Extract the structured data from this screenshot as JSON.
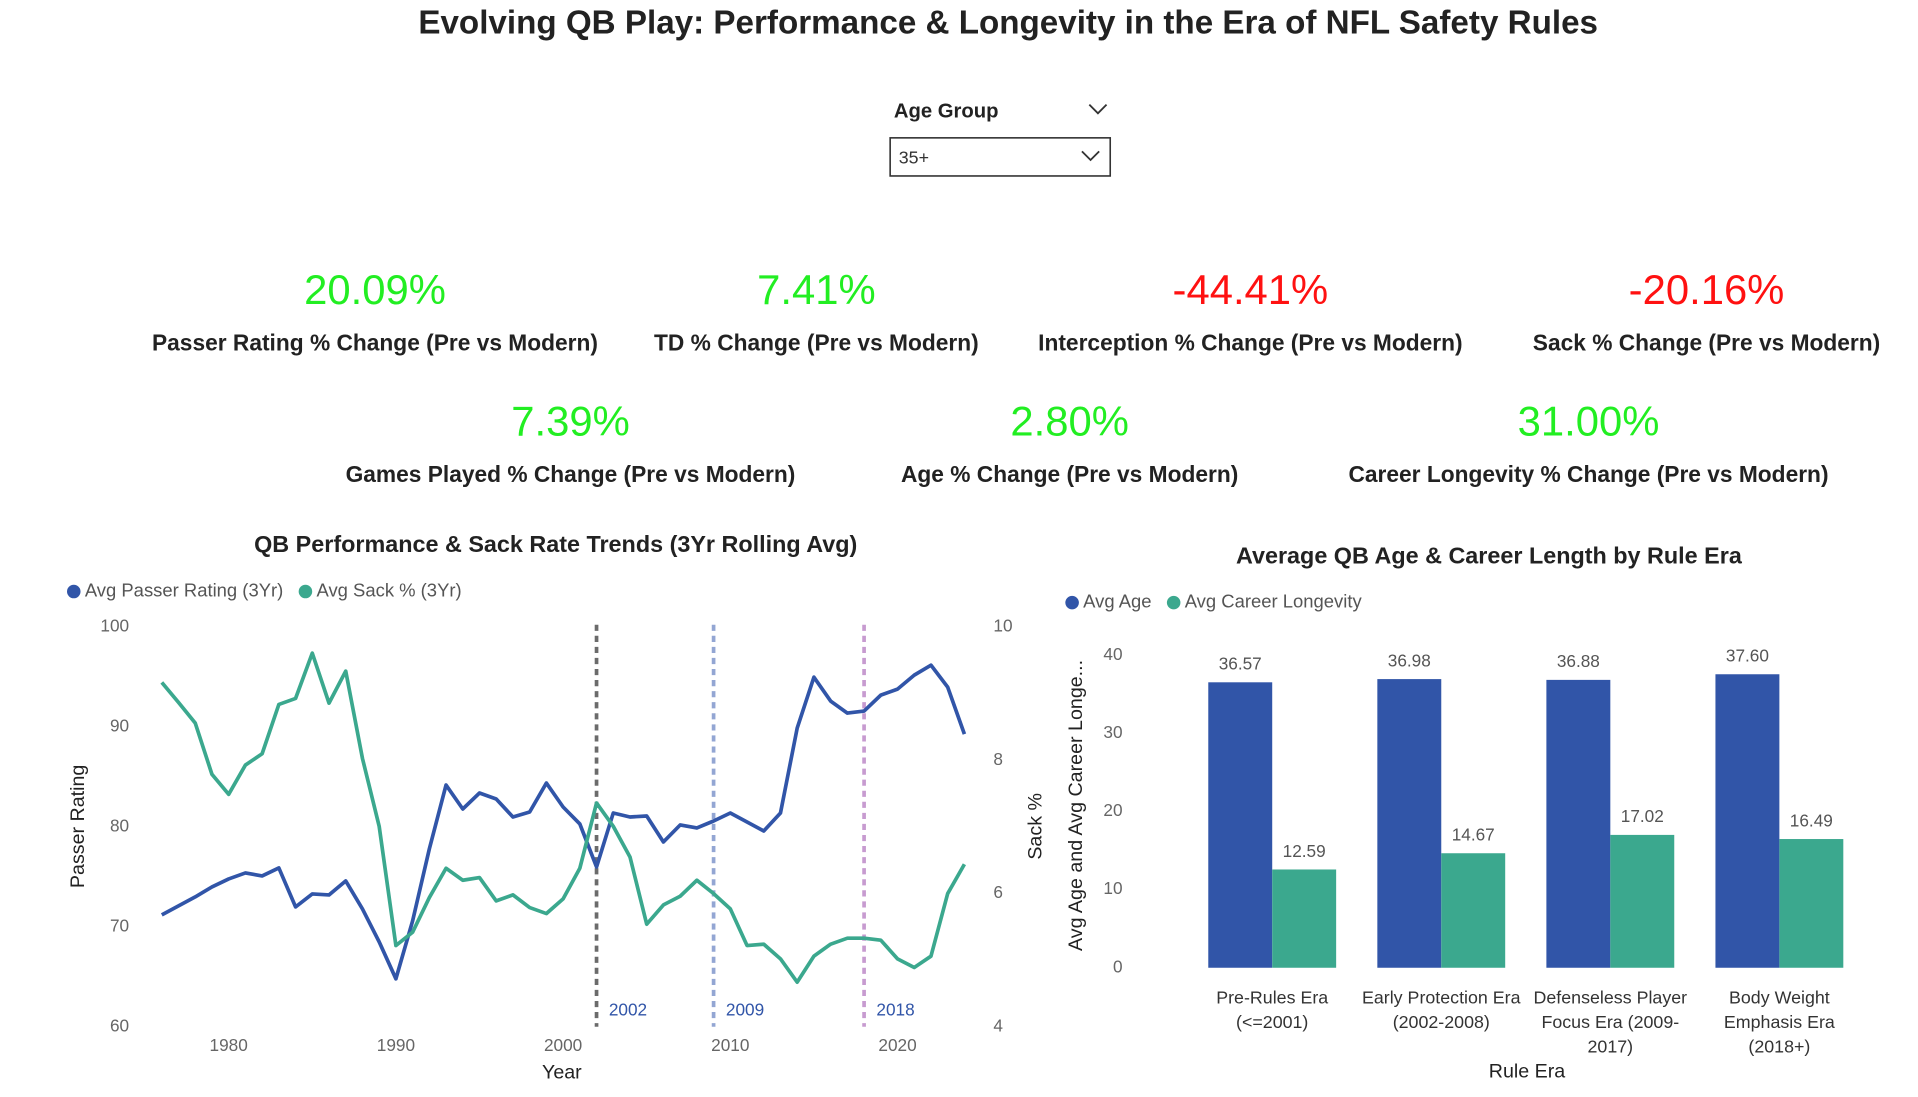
{
  "title": "Evolving QB Play: Performance & Longevity in the Era of NFL Safety Rules",
  "slicer": {
    "label": "Age Group",
    "value": "35+"
  },
  "kpis": [
    {
      "value": "20.09%",
      "label": "Passer Rating % Change (Pre vs Modern)",
      "color": "#22ee22"
    },
    {
      "value": "7.41%",
      "label": "TD % Change (Pre vs Modern)",
      "color": "#22ee22"
    },
    {
      "value": "-44.41%",
      "label": "Interception % Change (Pre vs Modern)",
      "color": "#ff1111"
    },
    {
      "value": "-20.16%",
      "label": "Sack % Change (Pre vs Modern)",
      "color": "#ff1111"
    },
    {
      "value": "7.39%",
      "label": "Games Played % Change (Pre vs Modern)",
      "color": "#22ee22"
    },
    {
      "value": "2.80%",
      "label": "Age % Change (Pre vs Modern)",
      "color": "#22ee22"
    },
    {
      "value": "31.00%",
      "label": "Career Longevity % Change (Pre vs Modern)",
      "color": "#22ee22"
    }
  ],
  "chart_data": [
    {
      "type": "line",
      "title": "QB Performance & Sack Rate Trends (3Yr Rolling Avg)",
      "x_label": "Year",
      "y_label": "Passer Rating",
      "y2_label": "Sack %",
      "x": [
        1976,
        1977,
        1978,
        1979,
        1980,
        1981,
        1982,
        1983,
        1984,
        1985,
        1986,
        1987,
        1988,
        1989,
        1990,
        1991,
        1992,
        1993,
        1994,
        1995,
        1996,
        1997,
        1998,
        1999,
        2000,
        2001,
        2002,
        2003,
        2004,
        2005,
        2006,
        2007,
        2008,
        2009,
        2010,
        2011,
        2012,
        2013,
        2014,
        2015,
        2016,
        2017,
        2018,
        2019,
        2020,
        2021,
        2022,
        2023,
        2024
      ],
      "series": [
        {
          "name": "Avg Passer Rating (3Yr)",
          "color": "#3155a8",
          "values": [
            71.2,
            72.1,
            73.0,
            74.0,
            74.8,
            75.4,
            75.1,
            75.9,
            72.0,
            73.3,
            73.2,
            74.6,
            71.8,
            68.5,
            64.8,
            70.6,
            77.8,
            84.2,
            81.8,
            83.4,
            82.8,
            81.0,
            81.5,
            84.4,
            82.0,
            80.3,
            76.0,
            81.4,
            81.0,
            81.1,
            78.5,
            80.2,
            79.9,
            80.6,
            81.4,
            80.5,
            79.6,
            81.4,
            89.9,
            95.0,
            92.6,
            91.4,
            91.6,
            93.2,
            93.8,
            95.2,
            96.2,
            94.0,
            89.3
          ]
        },
        {
          "name": "Avg Sack % (3Yr)",
          "color": "#3ba88e",
          "axis": "y2",
          "values": [
            9.17,
            8.87,
            8.56,
            7.79,
            7.49,
            7.93,
            8.1,
            8.84,
            8.93,
            9.61,
            8.86,
            9.34,
            8.03,
            7.01,
            5.22,
            5.42,
            5.94,
            6.38,
            6.2,
            6.24,
            5.89,
            5.98,
            5.79,
            5.7,
            5.92,
            6.38,
            7.36,
            7.01,
            6.55,
            5.54,
            5.83,
            5.96,
            6.2,
            6.0,
            5.77,
            5.22,
            5.24,
            5.02,
            4.67,
            5.06,
            5.24,
            5.33,
            5.33,
            5.3,
            5.02,
            4.89,
            5.06,
            6.0,
            6.44
          ]
        }
      ],
      "xlim": [
        1975.5,
        2024.5
      ],
      "xticks": [
        1980,
        1990,
        2000,
        2010,
        2020
      ],
      "ylim": [
        60,
        100
      ],
      "yticks": [
        60,
        70,
        80,
        90,
        100
      ],
      "y2lim": [
        4,
        10
      ],
      "y2ticks": [
        4,
        6,
        8,
        10
      ],
      "reference_lines": [
        {
          "value": 2002,
          "color": "#6b6b6b"
        },
        {
          "value": 2009,
          "color": "#93a6d3"
        },
        {
          "value": 2018,
          "color": "#c79bd0"
        }
      ],
      "legend": "top-left",
      "grid": false
    },
    {
      "type": "bar",
      "title": "Average QB Age & Career Length by Rule Era",
      "x_label": "Rule Era",
      "y_label": "Avg Age and Avg Career Longe...",
      "categories": [
        "Pre-Rules Era (<=2001)",
        "Early Protection Era (2002-2008)",
        "Defenseless Player Focus Era (2009-2017)",
        "Body Weight Emphasis Era (2018+)"
      ],
      "series": [
        {
          "name": "Avg Age",
          "color": "#3155a8",
          "values": [
            36.57,
            36.98,
            36.88,
            37.6
          ],
          "value_labels": [
            "36.57",
            "36.98",
            "36.88",
            "37.60"
          ]
        },
        {
          "name": "Avg Career Longevity",
          "color": "#3ba88e",
          "values": [
            12.59,
            14.67,
            17.02,
            16.49
          ],
          "value_labels": [
            "12.59",
            "14.67",
            "17.02",
            "16.49"
          ]
        }
      ],
      "ylim": [
        0,
        43
      ],
      "yticks": [
        0,
        10,
        20,
        30,
        40
      ],
      "legend": "top-left",
      "grid": false
    }
  ]
}
